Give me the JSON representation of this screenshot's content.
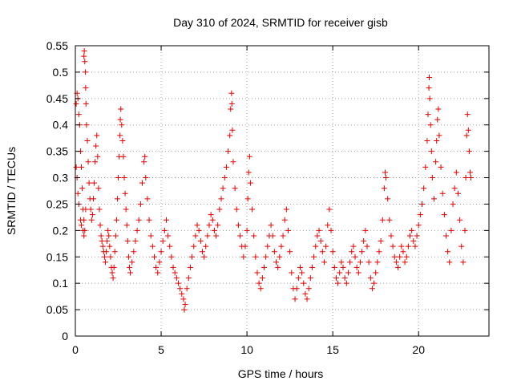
{
  "chart_data": {
    "type": "scatter",
    "title": "Day 310 of 2024, SRMTID for receiver gisb",
    "xlabel": "GPS time / hours",
    "ylabel": "SRMTID / TECUs",
    "xlim": [
      0,
      24.1
    ],
    "ylim": [
      0,
      0.55
    ],
    "xticks": [
      0,
      5,
      10,
      15,
      20
    ],
    "yticks": [
      0,
      0.05,
      0.1,
      0.15,
      0.2,
      0.25,
      0.3,
      0.35,
      0.4,
      0.45,
      0.5,
      0.55
    ],
    "xtick_labels": [
      "0",
      "5",
      "10",
      "15",
      "20"
    ],
    "ytick_labels": [
      "0",
      "0.05",
      "0.1",
      "0.15",
      "0.2",
      "0.25",
      "0.3",
      "0.35",
      "0.4",
      "0.45",
      "0.5",
      "0.55"
    ],
    "grid": true,
    "marker": "+",
    "color": "#e60000",
    "series": [
      {
        "name": "SRMTID",
        "points": [
          [
            0.05,
            0.44
          ],
          [
            0.1,
            0.46
          ],
          [
            0.15,
            0.45
          ],
          [
            0.2,
            0.42
          ],
          [
            0.25,
            0.4
          ],
          [
            0.3,
            0.35
          ],
          [
            0.35,
            0.32
          ],
          [
            0.4,
            0.28
          ],
          [
            0.45,
            0.24
          ],
          [
            0.5,
            0.22
          ],
          [
            0.05,
            0.32
          ],
          [
            0.1,
            0.3
          ],
          [
            0.15,
            0.27
          ],
          [
            0.2,
            0.25
          ],
          [
            0.3,
            0.22
          ],
          [
            0.35,
            0.21
          ],
          [
            0.45,
            0.2
          ],
          [
            0.5,
            0.19
          ],
          [
            0.55,
            0.2
          ],
          [
            0.6,
            0.24
          ],
          [
            0.5,
            0.53
          ],
          [
            0.52,
            0.54
          ],
          [
            0.55,
            0.52
          ],
          [
            0.58,
            0.5
          ],
          [
            0.6,
            0.47
          ],
          [
            0.62,
            0.44
          ],
          [
            0.65,
            0.4
          ],
          [
            0.7,
            0.37
          ],
          [
            0.75,
            0.33
          ],
          [
            0.8,
            0.29
          ],
          [
            0.85,
            0.26
          ],
          [
            0.9,
            0.24
          ],
          [
            0.95,
            0.22
          ],
          [
            1.0,
            0.23
          ],
          [
            1.05,
            0.26
          ],
          [
            1.1,
            0.29
          ],
          [
            1.15,
            0.33
          ],
          [
            1.2,
            0.36
          ],
          [
            1.25,
            0.38
          ],
          [
            1.3,
            0.34
          ],
          [
            1.35,
            0.28
          ],
          [
            1.4,
            0.24
          ],
          [
            1.45,
            0.21
          ],
          [
            1.5,
            0.19
          ],
          [
            1.55,
            0.18
          ],
          [
            1.6,
            0.17
          ],
          [
            1.65,
            0.16
          ],
          [
            1.7,
            0.15
          ],
          [
            1.75,
            0.14
          ],
          [
            1.8,
            0.16
          ],
          [
            1.85,
            0.18
          ],
          [
            1.9,
            0.2
          ],
          [
            1.95,
            0.19
          ],
          [
            2.0,
            0.17
          ],
          [
            2.05,
            0.15
          ],
          [
            2.1,
            0.13
          ],
          [
            2.15,
            0.12
          ],
          [
            2.2,
            0.11
          ],
          [
            2.25,
            0.13
          ],
          [
            2.3,
            0.16
          ],
          [
            2.35,
            0.19
          ],
          [
            2.4,
            0.22
          ],
          [
            2.45,
            0.26
          ],
          [
            2.5,
            0.3
          ],
          [
            2.55,
            0.34
          ],
          [
            2.6,
            0.38
          ],
          [
            2.62,
            0.41
          ],
          [
            2.65,
            0.43
          ],
          [
            2.7,
            0.4
          ],
          [
            2.75,
            0.37
          ],
          [
            2.8,
            0.34
          ],
          [
            2.85,
            0.3
          ],
          [
            2.9,
            0.27
          ],
          [
            2.95,
            0.24
          ],
          [
            3.0,
            0.21
          ],
          [
            3.05,
            0.18
          ],
          [
            3.1,
            0.15
          ],
          [
            3.15,
            0.13
          ],
          [
            3.2,
            0.12
          ],
          [
            3.3,
            0.14
          ],
          [
            3.4,
            0.16
          ],
          [
            3.5,
            0.18
          ],
          [
            3.6,
            0.2
          ],
          [
            3.7,
            0.22
          ],
          [
            3.8,
            0.25
          ],
          [
            3.9,
            0.29
          ],
          [
            4.0,
            0.33
          ],
          [
            4.05,
            0.34
          ],
          [
            4.1,
            0.3
          ],
          [
            4.2,
            0.26
          ],
          [
            4.3,
            0.22
          ],
          [
            4.4,
            0.19
          ],
          [
            4.5,
            0.17
          ],
          [
            4.6,
            0.15
          ],
          [
            4.7,
            0.13
          ],
          [
            4.8,
            0.12
          ],
          [
            4.9,
            0.14
          ],
          [
            5.0,
            0.16
          ],
          [
            5.1,
            0.18
          ],
          [
            5.2,
            0.2
          ],
          [
            5.3,
            0.22
          ],
          [
            5.4,
            0.19
          ],
          [
            5.5,
            0.17
          ],
          [
            5.6,
            0.15
          ],
          [
            5.7,
            0.13
          ],
          [
            5.8,
            0.12
          ],
          [
            5.9,
            0.11
          ],
          [
            6.0,
            0.1
          ],
          [
            6.1,
            0.09
          ],
          [
            6.2,
            0.08
          ],
          [
            6.3,
            0.07
          ],
          [
            6.35,
            0.05
          ],
          [
            6.4,
            0.06
          ],
          [
            6.5,
            0.09
          ],
          [
            6.6,
            0.11
          ],
          [
            6.7,
            0.13
          ],
          [
            6.8,
            0.15
          ],
          [
            6.9,
            0.17
          ],
          [
            7.0,
            0.19
          ],
          [
            7.1,
            0.21
          ],
          [
            7.2,
            0.2
          ],
          [
            7.3,
            0.18
          ],
          [
            7.4,
            0.16
          ],
          [
            7.5,
            0.15
          ],
          [
            7.6,
            0.17
          ],
          [
            7.7,
            0.19
          ],
          [
            7.8,
            0.21
          ],
          [
            7.9,
            0.23
          ],
          [
            8.0,
            0.22
          ],
          [
            8.1,
            0.2
          ],
          [
            8.2,
            0.19
          ],
          [
            8.3,
            0.21
          ],
          [
            8.4,
            0.24
          ],
          [
            8.5,
            0.26
          ],
          [
            8.6,
            0.28
          ],
          [
            8.7,
            0.3
          ],
          [
            8.8,
            0.32
          ],
          [
            8.9,
            0.35
          ],
          [
            9.0,
            0.38
          ],
          [
            9.05,
            0.43
          ],
          [
            9.1,
            0.46
          ],
          [
            9.12,
            0.44
          ],
          [
            9.15,
            0.39
          ],
          [
            9.2,
            0.33
          ],
          [
            9.3,
            0.28
          ],
          [
            9.4,
            0.24
          ],
          [
            9.5,
            0.21
          ],
          [
            9.6,
            0.19
          ],
          [
            9.7,
            0.17
          ],
          [
            9.8,
            0.15
          ],
          [
            9.9,
            0.17
          ],
          [
            10.0,
            0.2
          ],
          [
            10.05,
            0.26
          ],
          [
            10.1,
            0.31
          ],
          [
            10.15,
            0.34
          ],
          [
            10.2,
            0.29
          ],
          [
            10.3,
            0.24
          ],
          [
            10.4,
            0.19
          ],
          [
            10.5,
            0.15
          ],
          [
            10.6,
            0.12
          ],
          [
            10.7,
            0.1
          ],
          [
            10.8,
            0.09
          ],
          [
            10.9,
            0.11
          ],
          [
            11.0,
            0.13
          ],
          [
            11.1,
            0.15
          ],
          [
            11.2,
            0.17
          ],
          [
            11.3,
            0.19
          ],
          [
            11.4,
            0.21
          ],
          [
            11.5,
            0.19
          ],
          [
            11.6,
            0.16
          ],
          [
            11.7,
            0.14
          ],
          [
            11.8,
            0.13
          ],
          [
            11.9,
            0.15
          ],
          [
            12.0,
            0.17
          ],
          [
            12.1,
            0.19
          ],
          [
            12.2,
            0.22
          ],
          [
            12.3,
            0.24
          ],
          [
            12.4,
            0.2
          ],
          [
            12.5,
            0.16
          ],
          [
            12.6,
            0.12
          ],
          [
            12.7,
            0.09
          ],
          [
            12.8,
            0.07
          ],
          [
            12.9,
            0.09
          ],
          [
            13.0,
            0.11
          ],
          [
            13.1,
            0.13
          ],
          [
            13.2,
            0.12
          ],
          [
            13.3,
            0.1
          ],
          [
            13.4,
            0.08
          ],
          [
            13.5,
            0.07
          ],
          [
            13.6,
            0.09
          ],
          [
            13.7,
            0.11
          ],
          [
            13.8,
            0.13
          ],
          [
            13.9,
            0.15
          ],
          [
            14.0,
            0.17
          ],
          [
            14.1,
            0.19
          ],
          [
            14.2,
            0.2
          ],
          [
            14.3,
            0.18
          ],
          [
            14.4,
            0.16
          ],
          [
            14.5,
            0.14
          ],
          [
            14.6,
            0.17
          ],
          [
            14.7,
            0.21
          ],
          [
            14.8,
            0.24
          ],
          [
            14.9,
            0.2
          ],
          [
            15.0,
            0.16
          ],
          [
            15.1,
            0.13
          ],
          [
            15.2,
            0.11
          ],
          [
            15.3,
            0.1
          ],
          [
            15.4,
            0.12
          ],
          [
            15.5,
            0.14
          ],
          [
            15.6,
            0.13
          ],
          [
            15.7,
            0.11
          ],
          [
            15.8,
            0.1
          ],
          [
            15.9,
            0.12
          ],
          [
            16.0,
            0.14
          ],
          [
            16.1,
            0.16
          ],
          [
            16.2,
            0.17
          ],
          [
            16.3,
            0.15
          ],
          [
            16.4,
            0.13
          ],
          [
            16.5,
            0.12
          ],
          [
            16.6,
            0.14
          ],
          [
            16.7,
            0.16
          ],
          [
            16.8,
            0.18
          ],
          [
            16.9,
            0.2
          ],
          [
            17.0,
            0.17
          ],
          [
            17.1,
            0.14
          ],
          [
            17.2,
            0.11
          ],
          [
            17.3,
            0.09
          ],
          [
            17.4,
            0.1
          ],
          [
            17.5,
            0.12
          ],
          [
            17.6,
            0.14
          ],
          [
            17.7,
            0.16
          ],
          [
            17.8,
            0.18
          ],
          [
            17.9,
            0.22
          ],
          [
            18.0,
            0.28
          ],
          [
            18.05,
            0.31
          ],
          [
            18.1,
            0.3
          ],
          [
            18.2,
            0.26
          ],
          [
            18.3,
            0.22
          ],
          [
            18.4,
            0.19
          ],
          [
            18.5,
            0.17
          ],
          [
            18.6,
            0.15
          ],
          [
            18.7,
            0.14
          ],
          [
            18.8,
            0.13
          ],
          [
            18.9,
            0.15
          ],
          [
            19.0,
            0.17
          ],
          [
            19.1,
            0.16
          ],
          [
            19.2,
            0.14
          ],
          [
            19.3,
            0.15
          ],
          [
            19.4,
            0.17
          ],
          [
            19.5,
            0.19
          ],
          [
            19.6,
            0.2
          ],
          [
            19.7,
            0.18
          ],
          [
            19.8,
            0.17
          ],
          [
            19.9,
            0.19
          ],
          [
            20.0,
            0.21
          ],
          [
            20.1,
            0.23
          ],
          [
            20.2,
            0.25
          ],
          [
            20.3,
            0.28
          ],
          [
            20.4,
            0.32
          ],
          [
            20.5,
            0.37
          ],
          [
            20.55,
            0.42
          ],
          [
            20.6,
            0.47
          ],
          [
            20.62,
            0.49
          ],
          [
            20.65,
            0.45
          ],
          [
            20.7,
            0.4
          ],
          [
            20.75,
            0.35
          ],
          [
            20.8,
            0.3
          ],
          [
            20.9,
            0.26
          ],
          [
            21.0,
            0.33
          ],
          [
            21.05,
            0.37
          ],
          [
            21.1,
            0.41
          ],
          [
            21.15,
            0.43
          ],
          [
            21.2,
            0.38
          ],
          [
            21.3,
            0.32
          ],
          [
            21.4,
            0.27
          ],
          [
            21.5,
            0.23
          ],
          [
            21.6,
            0.19
          ],
          [
            21.7,
            0.16
          ],
          [
            21.8,
            0.14
          ],
          [
            21.9,
            0.2
          ],
          [
            22.0,
            0.25
          ],
          [
            22.1,
            0.28
          ],
          [
            22.2,
            0.31
          ],
          [
            22.3,
            0.27
          ],
          [
            22.4,
            0.22
          ],
          [
            22.5,
            0.17
          ],
          [
            22.6,
            0.14
          ],
          [
            22.7,
            0.2
          ],
          [
            22.75,
            0.3
          ],
          [
            22.8,
            0.38
          ],
          [
            22.85,
            0.42
          ],
          [
            22.9,
            0.39
          ],
          [
            22.95,
            0.35
          ],
          [
            23.0,
            0.31
          ],
          [
            23.05,
            0.3
          ]
        ]
      }
    ]
  }
}
